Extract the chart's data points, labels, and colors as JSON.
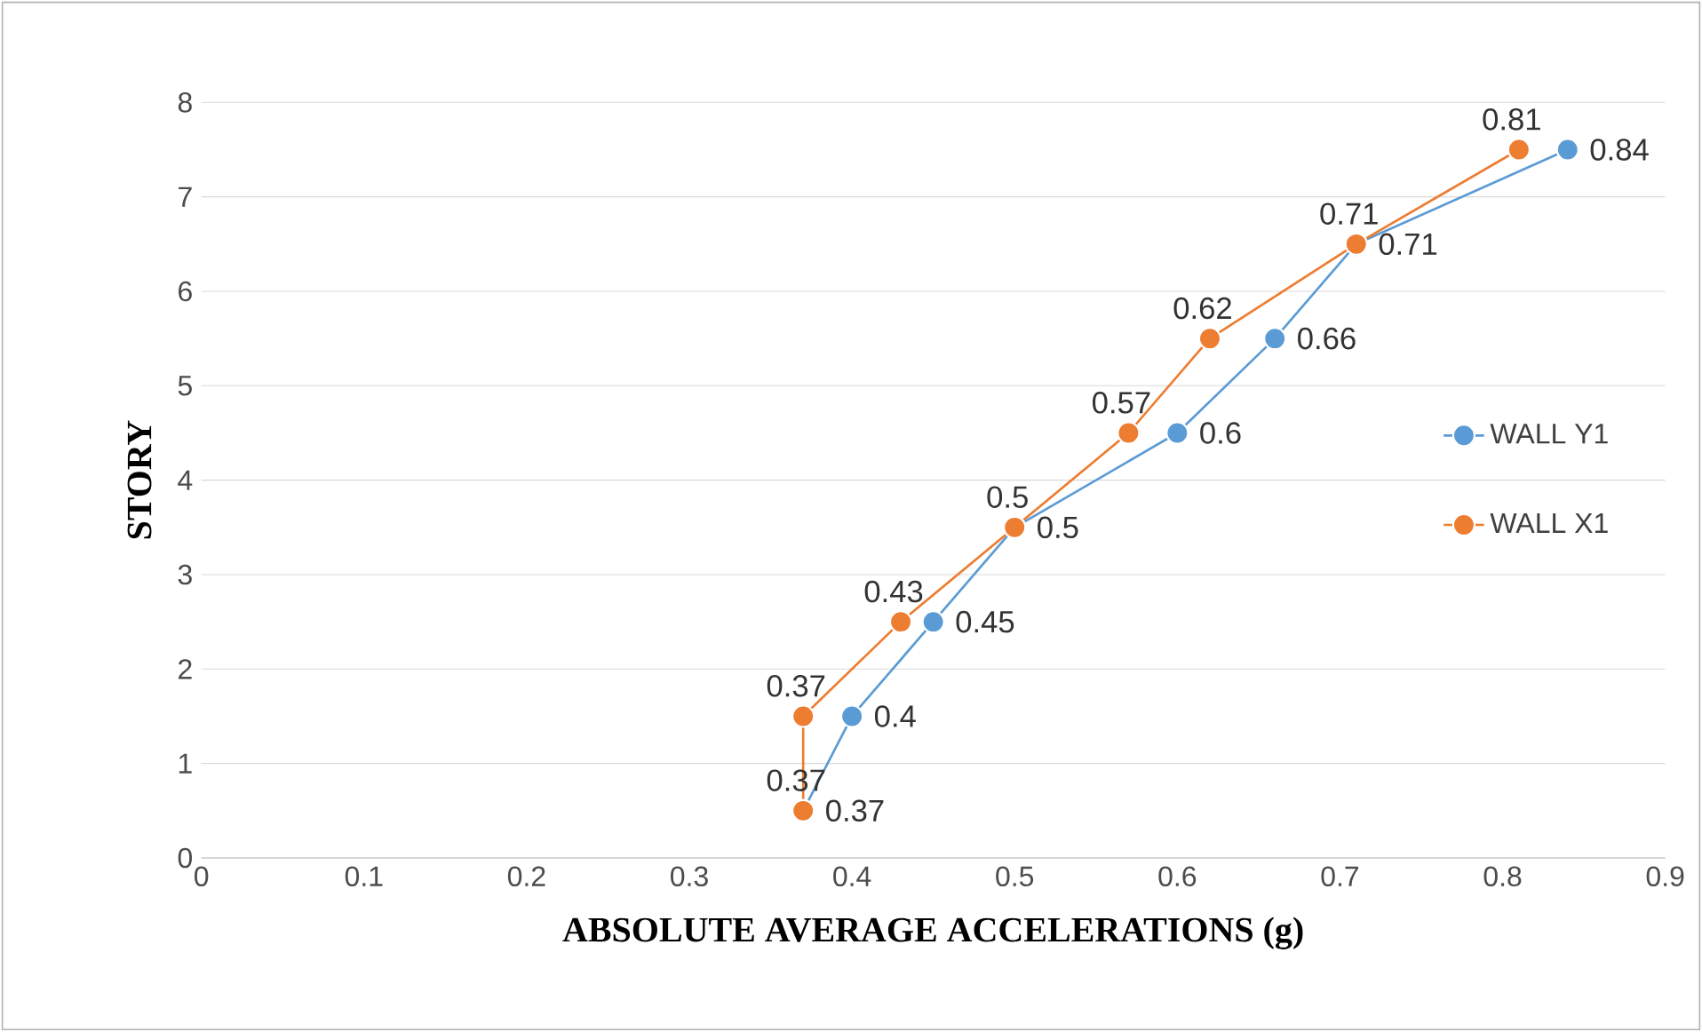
{
  "chart_data": {
    "type": "line",
    "xlabel": "ABSOLUTE AVERAGE ACCELERATIONS (g)",
    "ylabel": "STORY",
    "xlim": [
      0,
      0.9
    ],
    "xticks": [
      0,
      0.1,
      0.2,
      0.3,
      0.4,
      0.5,
      0.6,
      0.7,
      0.8,
      0.9
    ],
    "ylim": [
      0,
      8
    ],
    "yticks": [
      0,
      1,
      2,
      3,
      4,
      5,
      6,
      7,
      8
    ],
    "grid": "y",
    "legend": "right",
    "marker": "circle",
    "series": [
      {
        "name": "WALL Y1",
        "color": "#5b9bd5",
        "x": [
          0.37,
          0.4,
          0.45,
          0.5,
          0.6,
          0.66,
          0.71,
          0.84
        ],
        "values": [
          0.5,
          1.5,
          2.5,
          3.5,
          4.5,
          5.5,
          6.5,
          7.5
        ]
      },
      {
        "name": "WALL X1",
        "color": "#ed7d31",
        "x": [
          0.37,
          0.37,
          0.43,
          0.5,
          0.57,
          0.62,
          0.71,
          0.81
        ],
        "values": [
          0.5,
          1.5,
          2.5,
          3.5,
          4.5,
          5.5,
          6.5,
          7.5
        ]
      }
    ],
    "annotations": [
      {
        "text": "0.37",
        "x": 0.37,
        "y": 0.5
      },
      {
        "text": "0.4",
        "x": 0.4,
        "y": 1.5
      },
      {
        "text": "0.45",
        "x": 0.45,
        "y": 2.5
      },
      {
        "text": "0.5",
        "x": 0.5,
        "y": 3.5
      },
      {
        "text": "0.6",
        "x": 0.6,
        "y": 4.5
      },
      {
        "text": "0.66",
        "x": 0.66,
        "y": 5.5
      },
      {
        "text": "0.71",
        "x": 0.71,
        "y": 6.5
      },
      {
        "text": "0.84",
        "x": 0.84,
        "y": 7.5
      },
      {
        "text": "0.37",
        "x": 0.37,
        "y": 0.5
      },
      {
        "text": "0.37",
        "x": 0.37,
        "y": 1.5
      },
      {
        "text": "0.43",
        "x": 0.43,
        "y": 2.5
      },
      {
        "text": "0.5",
        "x": 0.5,
        "y": 3.5
      },
      {
        "text": "0.57",
        "x": 0.57,
        "y": 4.5
      },
      {
        "text": "0.62",
        "x": 0.62,
        "y": 5.5
      },
      {
        "text": "0.71",
        "x": 0.71,
        "y": 6.5
      },
      {
        "text": "0.81",
        "x": 0.81,
        "y": 7.5
      }
    ]
  }
}
